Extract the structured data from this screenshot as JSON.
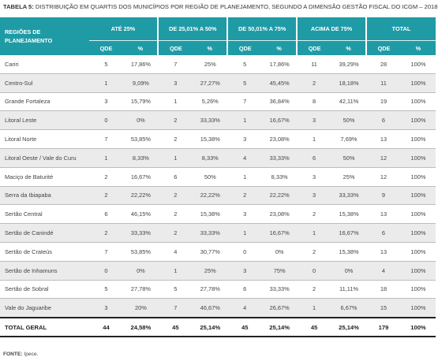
{
  "title": {
    "prefix": "TABELA 5:",
    "text": " DISTRIBUIÇÃO EM QUARTIS DOS MUNICÍPIOS POR REGIÃO DE PLANEJAMENTO, SEGUNDO A DIMENSÃO GESTÃO FISCAL DO ICGM – 2018"
  },
  "header": {
    "region_label": "REGIÕES DE PLANEJAMENTO",
    "groups": [
      "ATÉ 25%",
      "DE 25,01% A 50%",
      "DE 50,01% A 75%",
      "ACIMA DE 75%",
      "TOTAL"
    ],
    "sub_qde": "QDE",
    "sub_pct": "%"
  },
  "rows": [
    {
      "region": "Cariri",
      "vals": [
        "5",
        "17,86%",
        "7",
        "25%",
        "5",
        "17,86%",
        "11",
        "39,29%",
        "28",
        "100%"
      ]
    },
    {
      "region": "Centro-Sul",
      "vals": [
        "1",
        "9,09%",
        "3",
        "27,27%",
        "5",
        "45,45%",
        "2",
        "18,18%",
        "11",
        "100%"
      ]
    },
    {
      "region": "Grande Fortaleza",
      "vals": [
        "3",
        "15,79%",
        "1",
        "5,26%",
        "7",
        "36,84%",
        "8",
        "42,11%",
        "19",
        "100%"
      ]
    },
    {
      "region": "Litoral Leste",
      "vals": [
        "0",
        "0%",
        "2",
        "33,33%",
        "1",
        "16,67%",
        "3",
        "50%",
        "6",
        "100%"
      ]
    },
    {
      "region": "Litoral Norte",
      "vals": [
        "7",
        "53,85%",
        "2",
        "15,38%",
        "3",
        "23,08%",
        "1",
        "7,69%",
        "13",
        "100%"
      ]
    },
    {
      "region": "Litoral Oeste / Vale do Curu",
      "vals": [
        "1",
        "8,33%",
        "1",
        "8,33%",
        "4",
        "33,33%",
        "6",
        "50%",
        "12",
        "100%"
      ]
    },
    {
      "region": "Maciço de Baturité",
      "vals": [
        "2",
        "16,67%",
        "6",
        "50%",
        "1",
        "8,33%",
        "3",
        "25%",
        "12",
        "100%"
      ]
    },
    {
      "region": "Serra da Ibiapaba",
      "vals": [
        "2",
        "22,22%",
        "2",
        "22,22%",
        "2",
        "22,22%",
        "3",
        "33,33%",
        "9",
        "100%"
      ]
    },
    {
      "region": "Sertão Central",
      "vals": [
        "6",
        "46,15%",
        "2",
        "15,38%",
        "3",
        "23,08%",
        "2",
        "15,38%",
        "13",
        "100%"
      ]
    },
    {
      "region": "Sertão de Canindé",
      "vals": [
        "2",
        "33,33%",
        "2",
        "33,33%",
        "1",
        "16,67%",
        "1",
        "16,67%",
        "6",
        "100%"
      ]
    },
    {
      "region": "Sertão de Crateús",
      "vals": [
        "7",
        "53,85%",
        "4",
        "30,77%",
        "0",
        "0%",
        "2",
        "15,38%",
        "13",
        "100%"
      ]
    },
    {
      "region": "Sertão de Inhamuns",
      "vals": [
        "0",
        "0%",
        "1",
        "25%",
        "3",
        "75%",
        "0",
        "0%",
        "4",
        "100%"
      ]
    },
    {
      "region": "Sertão de Sobral",
      "vals": [
        "5",
        "27,78%",
        "5",
        "27,78%",
        "6",
        "33,33%",
        "2",
        "11,11%",
        "18",
        "100%"
      ]
    },
    {
      "region": "Vale do Jaguaribe",
      "vals": [
        "3",
        "20%",
        "7",
        "46,67%",
        "4",
        "26,67%",
        "1",
        "6,67%",
        "15",
        "100%"
      ]
    }
  ],
  "total": {
    "label": "TOTAL GERAL",
    "vals": [
      "44",
      "24,58%",
      "45",
      "25,14%",
      "45",
      "25,14%",
      "45",
      "25,14%",
      "179",
      "100%"
    ]
  },
  "source": {
    "label": "FONTE:",
    "text": " Ipece."
  }
}
